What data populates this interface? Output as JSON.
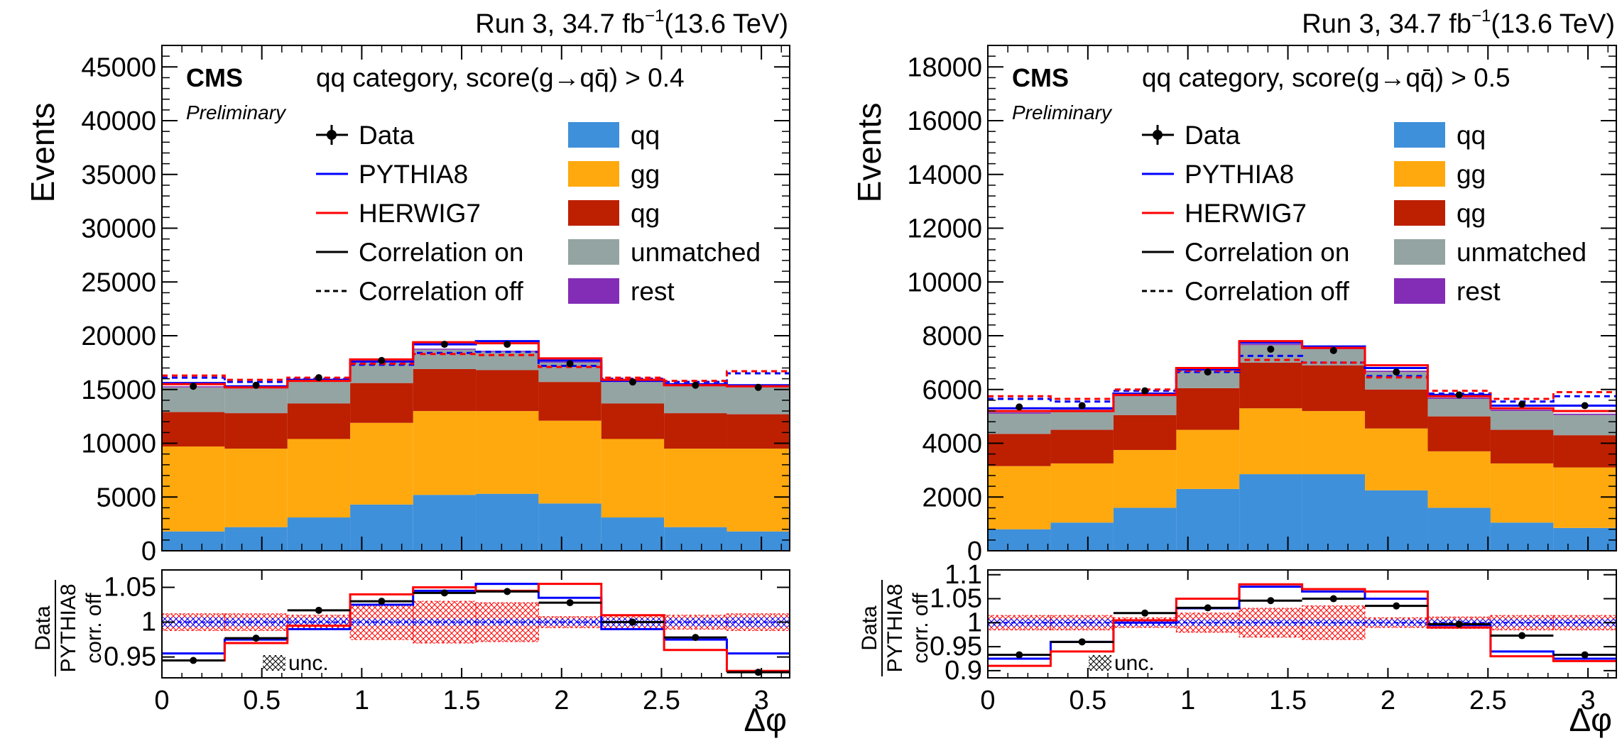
{
  "colors": {
    "qq": "#3f90da",
    "gg": "#ffa90e",
    "qg": "#bd1f01",
    "unmatched": "#94a4a2",
    "rest": "#832db6",
    "pythia": "#0000ff",
    "herwig": "#ff0000",
    "data": "#000000"
  },
  "legend": {
    "data": "Data",
    "pythia": "PYTHIA8",
    "herwig": "HERWIG7",
    "corr_on": "Correlation on",
    "corr_off": "Correlation off",
    "qq": "qq",
    "gg": "gg",
    "qg": "qg",
    "unmatched": "unmatched",
    "rest": "rest"
  },
  "chart_data": [
    {
      "type": "bar",
      "stacked": true,
      "lumi": "Run 3, 34.7 fb",
      "lumi_sup": "−1",
      "lumi_energy": "(13.6 TeV)",
      "experiment": "CMS",
      "status": "Preliminary",
      "category_label": "qq category, score(g→qq̄) > 0.4",
      "ylabel": "Events",
      "xlabel": "Δφ",
      "ratio_ylabel_num": "Data",
      "ratio_ylabel_den": "PYTHIA8",
      "ratio_ylabel_sub": "corr. off",
      "unc_label": "unc.",
      "ylim": [
        0,
        47000
      ],
      "yticks": [
        0,
        5000,
        10000,
        15000,
        20000,
        25000,
        30000,
        35000,
        40000,
        45000
      ],
      "ratio_ylim": [
        0.92,
        1.075
      ],
      "ratio_yticks": [
        0.95,
        1,
        1.05
      ],
      "ratio_ytick_labels": [
        "0.95",
        "1",
        "1.05"
      ],
      "xlim": [
        0,
        3.1416
      ],
      "xticks": [
        0,
        0.5,
        1,
        1.5,
        2,
        2.5,
        3
      ],
      "xtick_labels": [
        "0",
        "0.5",
        "1",
        "1.5",
        "2",
        "2.5",
        "3"
      ],
      "bin_edges": [
        0,
        0.314,
        0.628,
        0.942,
        1.257,
        1.571,
        1.885,
        2.199,
        2.513,
        2.827,
        3.1416
      ],
      "stack": [
        {
          "name": "qq",
          "values": [
            1800,
            2200,
            3100,
            4300,
            5200,
            5300,
            4400,
            3100,
            2200,
            1800
          ]
        },
        {
          "name": "gg",
          "values": [
            7900,
            7300,
            7300,
            7600,
            7800,
            7700,
            7700,
            7300,
            7300,
            7700
          ]
        },
        {
          "name": "qg",
          "values": [
            3200,
            3300,
            3300,
            3700,
            3900,
            3800,
            3600,
            3300,
            3300,
            3200
          ]
        },
        {
          "name": "unmatched",
          "values": [
            2300,
            2400,
            2100,
            2000,
            1800,
            1700,
            1800,
            2000,
            2500,
            2500
          ]
        },
        {
          "name": "rest",
          "values": [
            100,
            100,
            100,
            100,
            100,
            100,
            100,
            100,
            100,
            100
          ]
        }
      ],
      "pythia_on": [
        15600,
        15300,
        15900,
        17600,
        19200,
        19500,
        17700,
        15800,
        15500,
        15400
      ],
      "herwig_on": [
        15500,
        15200,
        15800,
        17800,
        19400,
        19300,
        17900,
        15900,
        15400,
        15300
      ],
      "pythia_off": [
        16100,
        15700,
        16000,
        17300,
        18400,
        18500,
        17200,
        16000,
        15700,
        16500
      ],
      "herwig_off": [
        16300,
        15900,
        16100,
        17400,
        18300,
        18200,
        17100,
        16100,
        15800,
        16700
      ],
      "data": [
        15300,
        15400,
        16100,
        17700,
        19200,
        19200,
        17400,
        15700,
        15400,
        15200
      ],
      "data_err": [
        150,
        150,
        150,
        160,
        170,
        170,
        160,
        150,
        150,
        150
      ],
      "ratio_pythia": [
        0.955,
        0.975,
        0.99,
        1.025,
        1.045,
        1.055,
        1.035,
        0.99,
        0.975,
        0.955
      ],
      "ratio_herwig": [
        0.945,
        0.97,
        0.995,
        1.04,
        1.05,
        1.045,
        1.055,
        1.01,
        0.96,
        0.93
      ],
      "ratio_data": [
        0.945,
        0.977,
        1.017,
        1.03,
        1.042,
        1.044,
        1.028,
        1.0,
        0.978,
        0.928
      ],
      "ratio_data_err": [
        0.0025,
        0.0025,
        0.0025,
        0.0025,
        0.0025,
        0.0025,
        0.0025,
        0.0025,
        0.0025,
        0.0025
      ],
      "unc_band_pythia": [
        0.007,
        0.006,
        0.006,
        0.005,
        0.005,
        0.005,
        0.005,
        0.006,
        0.006,
        0.007
      ],
      "unc_band_herwig": [
        0.012,
        0.012,
        0.01,
        0.025,
        0.03,
        0.028,
        0.008,
        0.01,
        0.01,
        0.012
      ]
    },
    {
      "type": "bar",
      "stacked": true,
      "lumi": "Run 3, 34.7 fb",
      "lumi_sup": "−1",
      "lumi_energy": "(13.6 TeV)",
      "experiment": "CMS",
      "status": "Preliminary",
      "category_label": "qq category, score(g→qq̄) > 0.5",
      "ylabel": "Events",
      "xlabel": "Δφ",
      "ratio_ylabel_num": "Data",
      "ratio_ylabel_den": "PYTHIA8",
      "ratio_ylabel_sub": "corr. off",
      "unc_label": "unc.",
      "ylim": [
        0,
        18800
      ],
      "yticks": [
        0,
        2000,
        4000,
        6000,
        8000,
        10000,
        12000,
        14000,
        16000,
        18000
      ],
      "ratio_ylim": [
        0.885,
        1.11
      ],
      "ratio_yticks": [
        0.9,
        0.95,
        1,
        1.05,
        1.1
      ],
      "ratio_ytick_labels": [
        "0.9",
        "0.95",
        "1",
        "1.05",
        "1.1"
      ],
      "xlim": [
        0,
        3.1416
      ],
      "xticks": [
        0,
        0.5,
        1,
        1.5,
        2,
        2.5,
        3
      ],
      "xtick_labels": [
        "0",
        "0.5",
        "1",
        "1.5",
        "2",
        "2.5",
        "3"
      ],
      "bin_edges": [
        0,
        0.314,
        0.628,
        0.942,
        1.257,
        1.571,
        1.885,
        2.199,
        2.513,
        2.827,
        3.1416
      ],
      "stack": [
        {
          "name": "qq",
          "values": [
            800,
            1050,
            1600,
            2300,
            2850,
            2850,
            2250,
            1600,
            1050,
            850
          ]
        },
        {
          "name": "gg",
          "values": [
            2350,
            2200,
            2150,
            2200,
            2450,
            2350,
            2300,
            2100,
            2200,
            2250
          ]
        },
        {
          "name": "qg",
          "values": [
            1200,
            1250,
            1300,
            1550,
            1700,
            1700,
            1450,
            1300,
            1250,
            1200
          ]
        },
        {
          "name": "unmatched",
          "values": [
            750,
            750,
            700,
            650,
            650,
            600,
            650,
            650,
            700,
            750
          ]
        },
        {
          "name": "rest",
          "values": [
            50,
            50,
            50,
            50,
            50,
            50,
            50,
            50,
            50,
            50
          ]
        }
      ],
      "pythia_on": [
        5300,
        5300,
        5850,
        6750,
        7750,
        7600,
        6800,
        5800,
        5400,
        5400
      ],
      "herwig_on": [
        5200,
        5200,
        5800,
        6800,
        7800,
        7550,
        6900,
        5750,
        5300,
        5200
      ],
      "pythia_off": [
        5650,
        5550,
        5950,
        6650,
        7250,
        7000,
        6500,
        5850,
        5550,
        5750
      ],
      "herwig_off": [
        5750,
        5650,
        6000,
        6700,
        7100,
        7000,
        6450,
        5950,
        5650,
        5900
      ],
      "data": [
        5350,
        5400,
        5950,
        6650,
        7500,
        7450,
        6650,
        5800,
        5450,
        5400
      ],
      "data_err": [
        75,
        75,
        80,
        85,
        90,
        90,
        85,
        80,
        75,
        75
      ],
      "ratio_pythia": [
        0.925,
        0.96,
        1.0,
        1.03,
        1.075,
        1.065,
        1.05,
        0.995,
        0.94,
        0.925
      ],
      "ratio_herwig": [
        0.91,
        0.94,
        1.005,
        1.05,
        1.08,
        1.07,
        1.065,
        0.99,
        0.93,
        0.92
      ],
      "ratio_data": [
        0.933,
        0.96,
        1.02,
        1.031,
        1.046,
        1.05,
        1.035,
        0.997,
        0.973,
        0.933
      ],
      "ratio_data_err": [
        0.004,
        0.004,
        0.004,
        0.004,
        0.004,
        0.004,
        0.004,
        0.004,
        0.004,
        0.004
      ],
      "unc_band_pythia": [
        0.008,
        0.008,
        0.007,
        0.007,
        0.007,
        0.007,
        0.007,
        0.007,
        0.008,
        0.008
      ],
      "unc_band_herwig": [
        0.015,
        0.015,
        0.01,
        0.02,
        0.03,
        0.035,
        0.01,
        0.012,
        0.015,
        0.015
      ]
    }
  ]
}
